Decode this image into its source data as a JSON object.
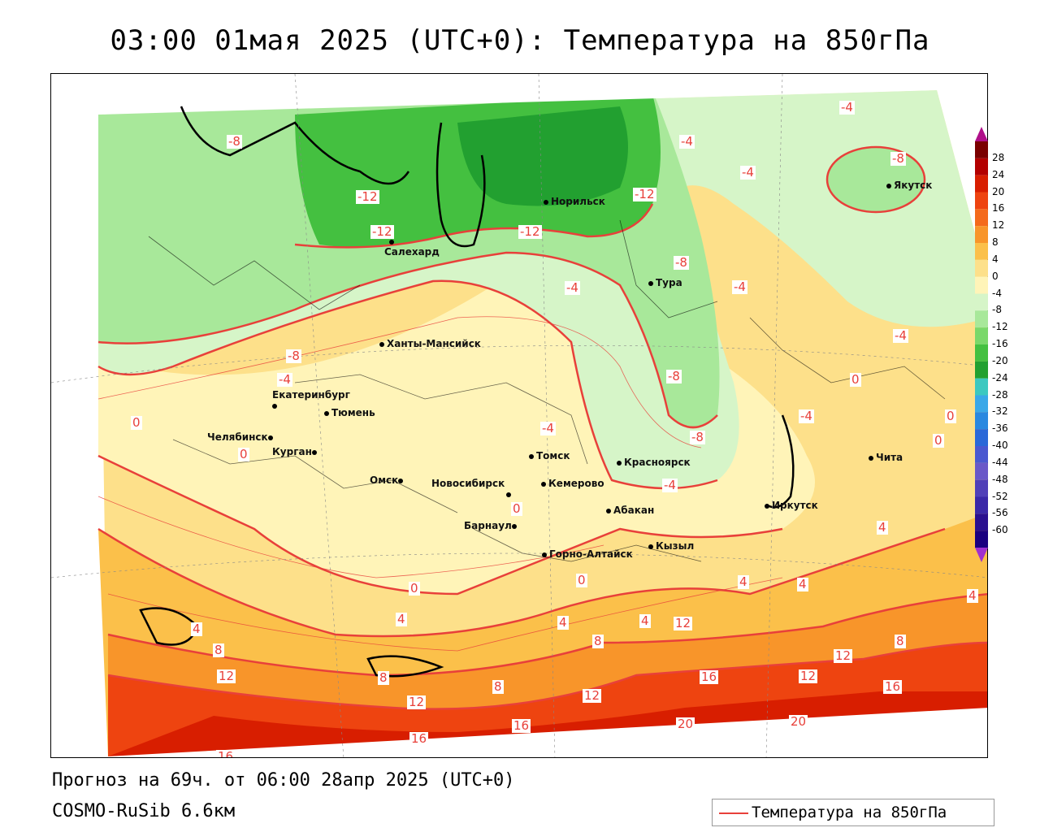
{
  "title": "03:00 01мая 2025 (UTC+0): Температура на 850гПа",
  "footer": {
    "forecast": "Прогноз на 69ч. от 06:00 28апр 2025 (UTC+0)",
    "model": "COSMO-RuSib 6.6км"
  },
  "legend": {
    "label": "Температура на 850гПа",
    "line_color": "#e8403a"
  },
  "colorbar": {
    "ticks": [
      "28",
      "24",
      "20",
      "16",
      "12",
      "8",
      "4",
      "0",
      "-4",
      "-8",
      "-12",
      "-16",
      "-20",
      "-24",
      "-28",
      "-32",
      "-36",
      "-40",
      "-44",
      "-48",
      "-52",
      "-56",
      "-60"
    ],
    "colors": [
      "#7a0000",
      "#b30000",
      "#d81e00",
      "#ee4410",
      "#f46a1c",
      "#f8952a",
      "#fbc04a",
      "#fde08a",
      "#fff4b8",
      "#d6f5c8",
      "#a8e89a",
      "#7ad86a",
      "#44c040",
      "#22a030",
      "#3cc8c0",
      "#3aa8e8",
      "#2a88e0",
      "#2a68d8",
      "#4a58d0",
      "#6a58c8",
      "#5040b8",
      "#3a28a8",
      "#2a1090",
      "#1a0080"
    ]
  },
  "cities": [
    {
      "id": "norilsk",
      "name": "Норильск"
    },
    {
      "id": "yakutsk",
      "name": "Якутск"
    },
    {
      "id": "salekhard",
      "name": "Салехард"
    },
    {
      "id": "tura",
      "name": "Тура"
    },
    {
      "id": "khanty",
      "name": "Ханты-Мансийск"
    },
    {
      "id": "ekaterinburg",
      "name": "Екатеринбург"
    },
    {
      "id": "tyumen",
      "name": "Тюмень"
    },
    {
      "id": "chelyabinsk",
      "name": "Челябинск"
    },
    {
      "id": "kurgan",
      "name": "Курган"
    },
    {
      "id": "omsk",
      "name": "Омск"
    },
    {
      "id": "novosibirsk",
      "name": "Новосибирск"
    },
    {
      "id": "tomsk",
      "name": "Томск"
    },
    {
      "id": "kemerovo",
      "name": "Кемерово"
    },
    {
      "id": "krasnoyarsk",
      "name": "Красноярск"
    },
    {
      "id": "barnaul",
      "name": "Барнаул"
    },
    {
      "id": "abakan",
      "name": "Абакан"
    },
    {
      "id": "irkutsk",
      "name": "Иркутск"
    },
    {
      "id": "chita",
      "name": "Чита"
    },
    {
      "id": "gorno",
      "name": "Горно-Алтайск"
    },
    {
      "id": "kyzyl",
      "name": "Кызыл"
    }
  ],
  "contour_labels": [
    "-8",
    "-12",
    "-12",
    "-12",
    "-12",
    "-4",
    "-8",
    "-4",
    "-8",
    "-4",
    "-4",
    "-4",
    "-8",
    "-8",
    "-4",
    "-4",
    "-4",
    "-8",
    "0",
    "0",
    "0",
    "-4",
    "-4",
    "0",
    "0",
    "0",
    "0",
    "0",
    "4",
    "4",
    "4",
    "4",
    "4",
    "4",
    "4",
    "4",
    "8",
    "8",
    "8",
    "8",
    "8",
    "12",
    "12",
    "12",
    "12",
    "12",
    "16",
    "16",
    "16",
    "16",
    "20",
    "20",
    "12",
    "16"
  ]
}
